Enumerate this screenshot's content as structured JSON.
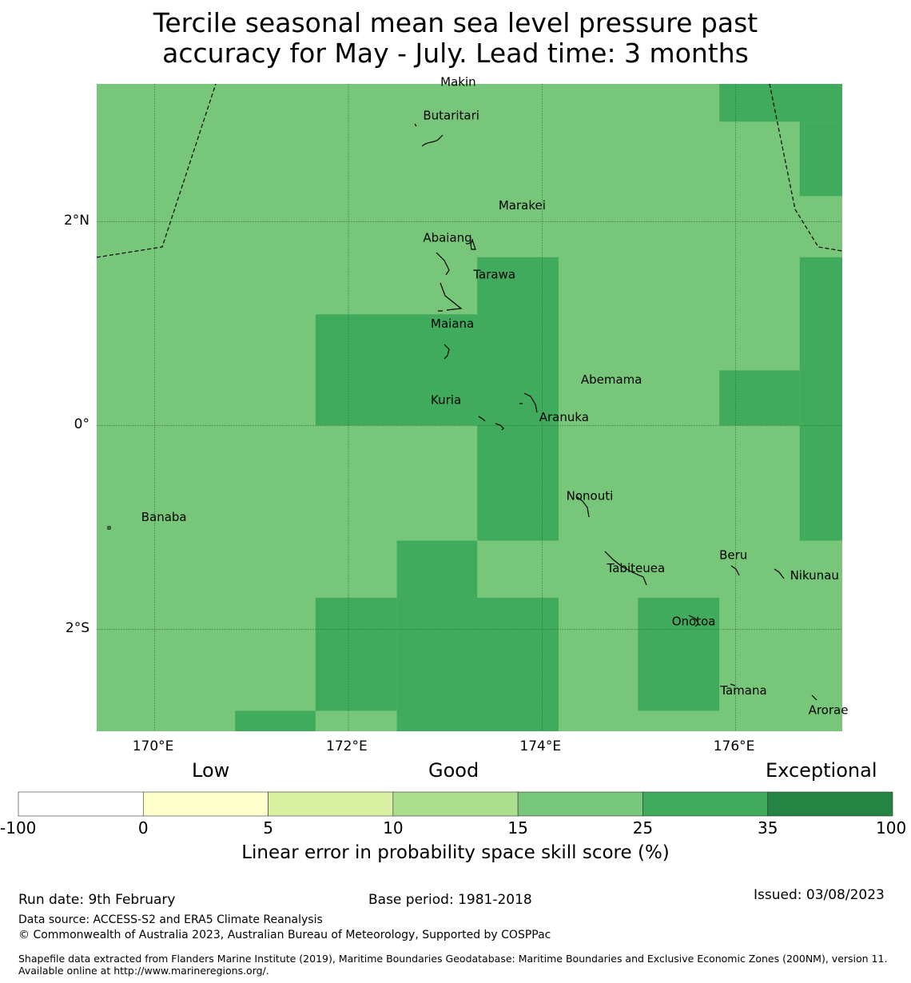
{
  "title": {
    "line1": "Tercile seasonal mean sea level pressure past",
    "line2": "accuracy for May - July. Lead time: 3 months"
  },
  "map": {
    "lon_range": [
      169.4,
      177.1
    ],
    "lat_range": [
      -3.0,
      3.35
    ],
    "x_ticks": [
      {
        "value": 170,
        "label": "170°E"
      },
      {
        "value": 172,
        "label": "172°E"
      },
      {
        "value": 174,
        "label": "174°E"
      },
      {
        "value": 176,
        "label": "176°E"
      }
    ],
    "y_ticks": [
      {
        "value": 2,
        "label": "2°N"
      },
      {
        "value": 0,
        "label": "0°"
      },
      {
        "value": -2,
        "label": "2°S"
      }
    ],
    "base_class_color": "#78c679",
    "skill_cells_25_35": [
      {
        "lon": [
          175.83,
          177.1
        ],
        "lat": [
          2.98,
          3.35
        ]
      },
      {
        "lon": [
          176.66,
          177.1
        ],
        "lat": [
          2.25,
          2.98
        ]
      },
      {
        "lon": [
          176.66,
          177.1
        ],
        "lat": [
          -1.13,
          1.65
        ]
      },
      {
        "lon": [
          175.83,
          176.66
        ],
        "lat": [
          0.0,
          0.54
        ]
      },
      {
        "lon": [
          171.66,
          173.33
        ],
        "lat": [
          0.0,
          1.09
        ]
      },
      {
        "lon": [
          173.33,
          174.17
        ],
        "lat": [
          -1.13,
          1.65
        ]
      },
      {
        "lon": [
          172.5,
          173.33
        ],
        "lat": [
          -1.13,
          -1.69
        ]
      },
      {
        "lon": [
          171.66,
          172.5
        ],
        "lat": [
          -1.69,
          -2.8
        ]
      },
      {
        "lon": [
          172.5,
          174.17
        ],
        "lat": [
          -1.69,
          -3.0
        ]
      },
      {
        "lon": [
          170.83,
          171.66
        ],
        "lat": [
          -2.8,
          -3.0
        ]
      },
      {
        "lon": [
          174.99,
          175.83
        ],
        "lat": [
          -1.69,
          -2.8
        ]
      }
    ],
    "islands": [
      {
        "name": "Makin",
        "lon": 172.95,
        "lat": 3.33
      },
      {
        "name": "Butaritari",
        "lon": 172.77,
        "lat": 3.0
      },
      {
        "name": "Marakei",
        "lon": 173.55,
        "lat": 2.12
      },
      {
        "name": "Abaiang",
        "lon": 172.77,
        "lat": 1.8
      },
      {
        "name": "Tarawa",
        "lon": 173.29,
        "lat": 1.44
      },
      {
        "name": "Maiana",
        "lon": 172.85,
        "lat": 0.96
      },
      {
        "name": "Abemama",
        "lon": 174.4,
        "lat": 0.41
      },
      {
        "name": "Kuria",
        "lon": 172.85,
        "lat": 0.21
      },
      {
        "name": "Aranuka",
        "lon": 173.97,
        "lat": 0.04
      },
      {
        "name": "Nonouti",
        "lon": 174.25,
        "lat": -0.73
      },
      {
        "name": "Banaba",
        "lon": 169.86,
        "lat": -0.94
      },
      {
        "name": "Beru",
        "lon": 175.83,
        "lat": -1.31
      },
      {
        "name": "Tabiteuea",
        "lon": 174.67,
        "lat": -1.44
      },
      {
        "name": "Nikunau",
        "lon": 176.56,
        "lat": -1.51
      },
      {
        "name": "Onotoa",
        "lon": 175.34,
        "lat": -1.96
      },
      {
        "name": "Tamana",
        "lon": 175.84,
        "lat": -2.64
      },
      {
        "name": "Arorae",
        "lon": 176.75,
        "lat": -2.83
      }
    ]
  },
  "categories": {
    "low": "Low",
    "good": "Good",
    "exceptional": "Exceptional"
  },
  "colorbar": {
    "bins": [
      {
        "from": "-100",
        "to": "0",
        "color": "#ffffff"
      },
      {
        "from": "0",
        "to": "5",
        "color": "#ffffcc"
      },
      {
        "from": "5",
        "to": "10",
        "color": "#d9f0a3"
      },
      {
        "from": "10",
        "to": "15",
        "color": "#addd8e"
      },
      {
        "from": "15",
        "to": "25",
        "color": "#78c679"
      },
      {
        "from": "25",
        "to": "35",
        "color": "#41ab5d"
      },
      {
        "from": "35",
        "to": "100",
        "color": "#238443"
      }
    ],
    "tick_labels": [
      "-100",
      "0",
      "5",
      "10",
      "15",
      "25",
      "35",
      "100"
    ],
    "label": "Linear error in probability space skill score (%)"
  },
  "footer": {
    "run_date": "Run date: 9th February",
    "base_period": "Base period: 1981-2018",
    "issued": "Issued: 03/08/2023",
    "data_source": "Data source: ACCESS-S2 and ERA5 Climate Reanalysis",
    "copyright": "© Commonwealth of Australia 2023, Australian Bureau of Meteorology, Supported by COSPPac",
    "shapefile": "Shapefile data extracted from Flanders Marine Institute (2019), Maritime Boundaries Geodatabase: Maritime Boundaries and Exclusive Economic Zones (200NM), version 11. Available online at http://www.marineregions.org/."
  }
}
